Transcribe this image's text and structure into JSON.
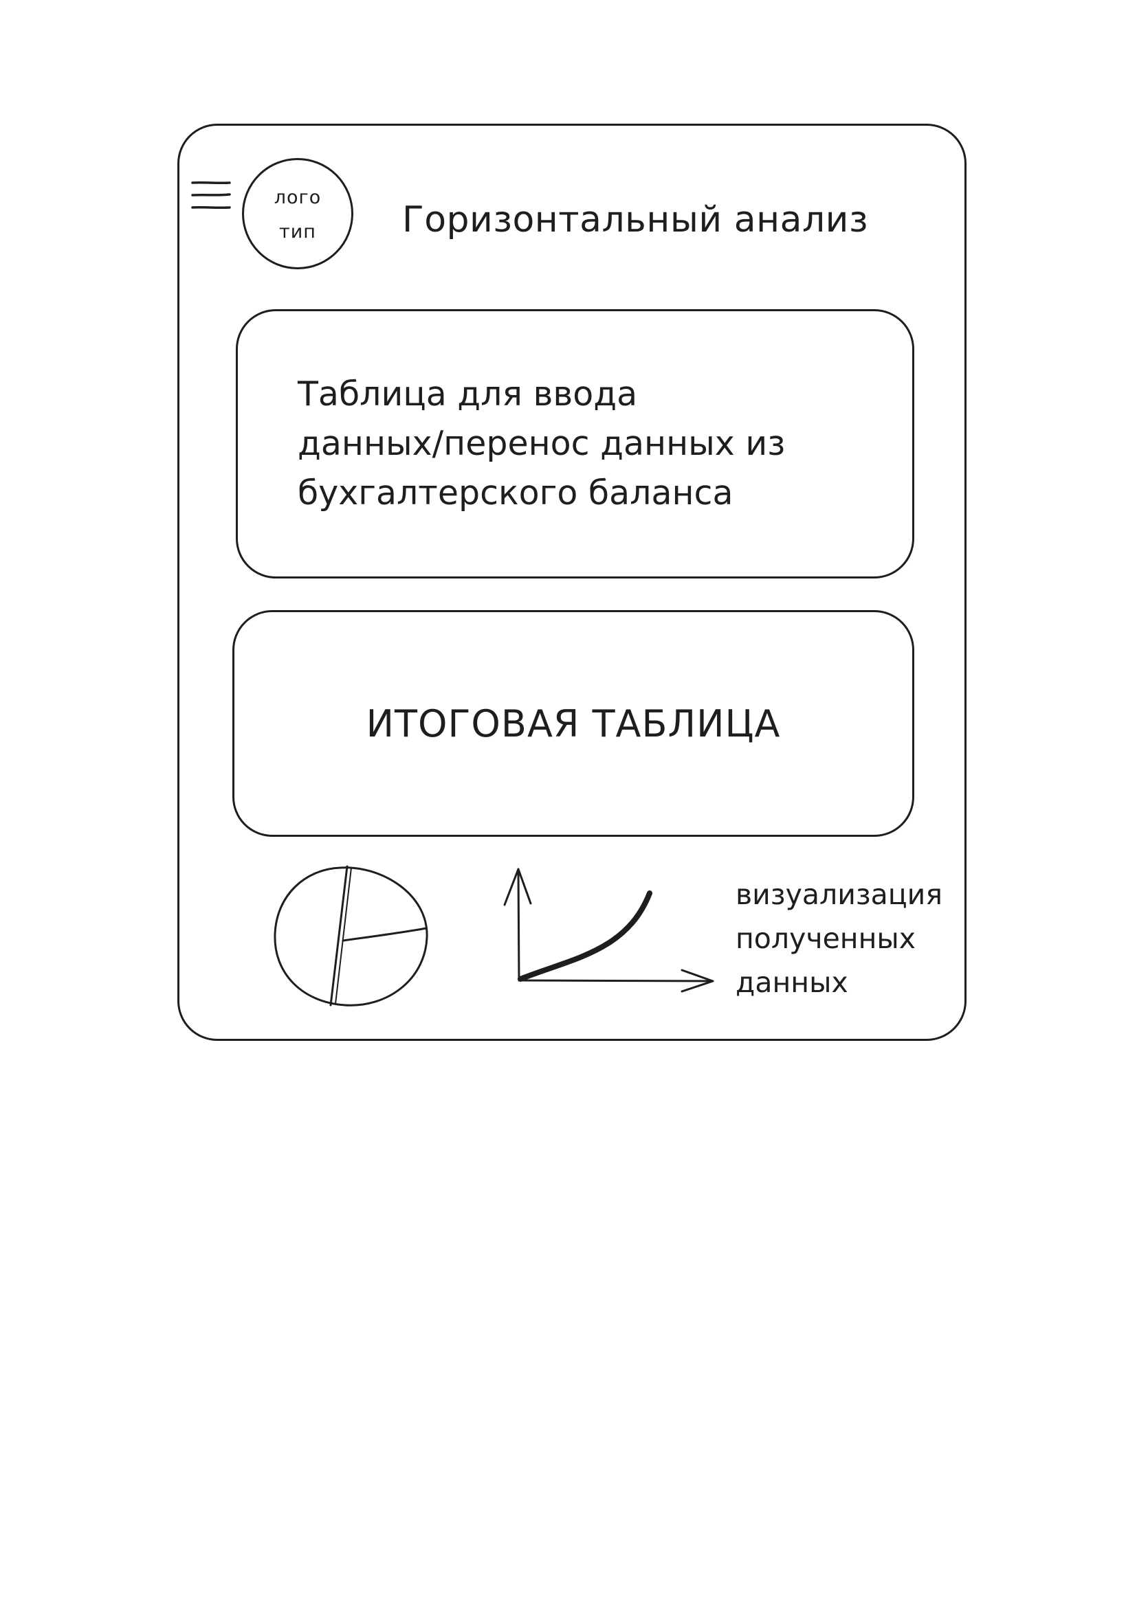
{
  "header": {
    "menu_icon": "hamburger-menu-icon",
    "logo": {
      "line1": "лого",
      "line2": "тип"
    },
    "title": "Горизонтальный анализ"
  },
  "input_table": {
    "lines": [
      "Таблица для ввода",
      "данных/перенос данных из",
      "бухгалтерского баланса"
    ]
  },
  "summary_table": {
    "label": "ИТОГОВАЯ ТАБЛИЦА"
  },
  "visualization": {
    "icons": [
      "pie-chart-icon",
      "line-chart-icon"
    ],
    "caption_lines": [
      "визуализация",
      "полученных",
      "данных"
    ]
  }
}
